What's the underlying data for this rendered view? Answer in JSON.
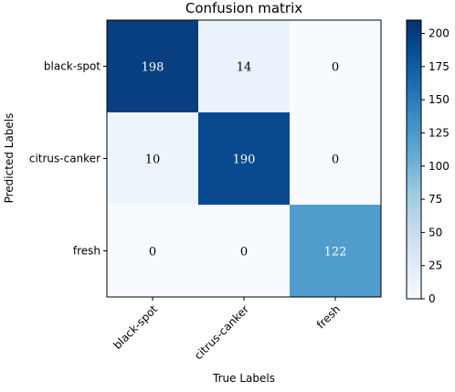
{
  "chart_data": {
    "type": "heatmap",
    "title": "Confusion matrix",
    "xlabel": "True Labels",
    "ylabel": "Predicted Labels",
    "x_categories": [
      "black-spot",
      "citrus-canker",
      "fresh"
    ],
    "y_categories": [
      "black-spot",
      "citrus-canker",
      "fresh"
    ],
    "values": [
      [
        198,
        14,
        0
      ],
      [
        10,
        190,
        0
      ],
      [
        0,
        0,
        122
      ]
    ],
    "colorbar": {
      "min": 0,
      "max": 210,
      "ticks": [
        0,
        25,
        50,
        75,
        100,
        125,
        150,
        175,
        200
      ],
      "colormap": "Blues",
      "colors": [
        "#f7fbff",
        "#deebf7",
        "#c6dbef",
        "#9ecae1",
        "#6baed6",
        "#4292c6",
        "#2171b5",
        "#08519c",
        "#08306b"
      ]
    }
  }
}
